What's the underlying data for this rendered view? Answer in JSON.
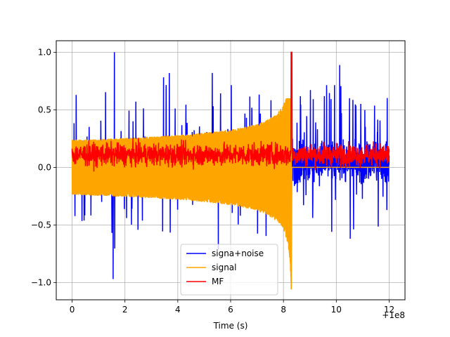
{
  "chart_data": {
    "type": "line",
    "title": "",
    "xlabel": "Time (s)",
    "ylabel": "",
    "x_offset_label": "+1e8",
    "xlim": [
      -0.6,
      12.6
    ],
    "ylim": [
      -1.15,
      1.1
    ],
    "x_ticks": [
      {
        "value": 0,
        "label": "0"
      },
      {
        "value": 2,
        "label": "2"
      },
      {
        "value": 4,
        "label": "4"
      },
      {
        "value": 6,
        "label": "6"
      },
      {
        "value": 8,
        "label": "8"
      },
      {
        "value": 10,
        "label": "10"
      },
      {
        "value": 12,
        "label": "12"
      }
    ],
    "y_ticks": [
      {
        "value": 1.0,
        "label": "1.0"
      },
      {
        "value": 0.5,
        "label": "0.5"
      },
      {
        "value": 0.0,
        "label": "0.0"
      },
      {
        "value": -0.5,
        "label": "−0.5"
      },
      {
        "value": -1.0,
        "label": "−1.0"
      }
    ],
    "grid": true,
    "legend_position": "lower center",
    "series": [
      {
        "name": "signa+noise",
        "color": "#0000ff",
        "description_values": {
          "x_range": [
            0,
            12
          ],
          "typical_range": [
            -0.35,
            0.45
          ],
          "max": 1.0,
          "min": -0.97
        }
      },
      {
        "name": "signal",
        "color": "#ffa500",
        "description_values": {
          "chirp_end_x": 8.3,
          "start_amplitude": 0.24,
          "peak_max": 0.6,
          "peak_min": -1.06
        }
      },
      {
        "name": "MF",
        "color": "#ff0000",
        "description_values": {
          "x_range": [
            0,
            12
          ],
          "typical_range": [
            -0.05,
            0.3
          ],
          "peak_x": 8.3,
          "peak_value": 1.0
        }
      }
    ]
  }
}
